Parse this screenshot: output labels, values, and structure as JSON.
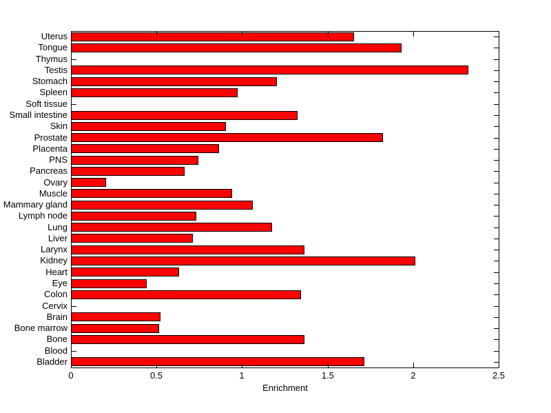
{
  "chart_data": {
    "type": "bar",
    "orientation": "horizontal",
    "title": "",
    "xlabel": "Enrichment",
    "ylabel": "",
    "xlim": [
      0,
      2.5
    ],
    "xtick_labels": [
      "0",
      "0.5",
      "1",
      "1.5",
      "2",
      "2.5"
    ],
    "xtick_values": [
      0,
      0.5,
      1,
      1.5,
      2,
      2.5
    ],
    "grid": false,
    "legend": "none",
    "bar_color": "#ff0000",
    "bar_edge_color": "#000000",
    "axis_color": "#000000",
    "background_color": "#ffffff",
    "categories": [
      "Uterus",
      "Tongue",
      "Thymus",
      "Testis",
      "Stomach",
      "Spleen",
      "Soft tissue",
      "Small intestine",
      "Skin",
      "Prostate",
      "Placenta",
      "PNS",
      "Pancreas",
      "Ovary",
      "Muscle",
      "Mammary gland",
      "Lymph node",
      "Lung",
      "Liver",
      "Larynx",
      "Kidney",
      "Heart",
      "Eye",
      "Colon",
      "Cervix",
      "Brain",
      "Bone marrow",
      "Bone",
      "Blood",
      "Bladder"
    ],
    "values": [
      1.65,
      1.93,
      0,
      2.32,
      1.2,
      0.97,
      0,
      1.32,
      0.9,
      1.82,
      0.86,
      0.74,
      0.66,
      0.2,
      0.94,
      1.06,
      0.73,
      1.17,
      0.71,
      1.36,
      2.01,
      0.63,
      0.44,
      1.34,
      0,
      0.52,
      0.51,
      1.36,
      0,
      1.71
    ]
  }
}
